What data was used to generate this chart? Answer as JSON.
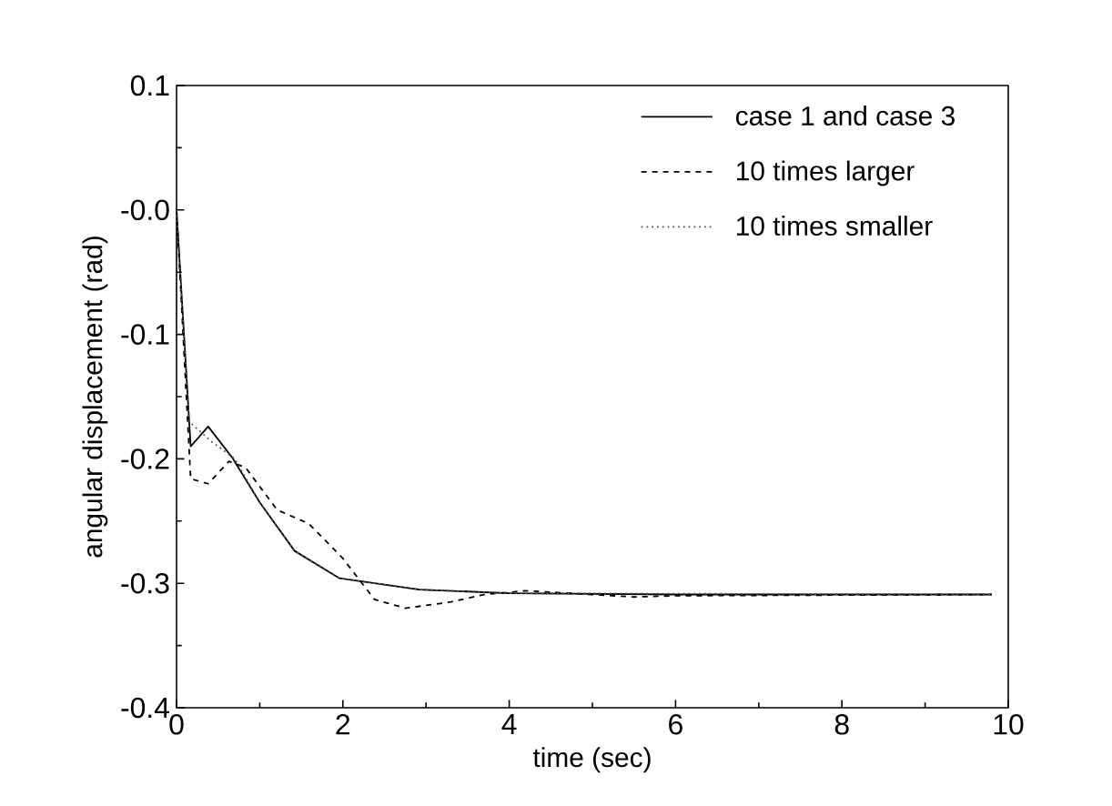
{
  "chart_data": {
    "type": "line",
    "xlabel": "time (sec)",
    "ylabel": "angular displacement (rad)",
    "xlim": [
      0,
      10
    ],
    "ylim": [
      -0.4,
      0.1
    ],
    "xticks": [
      0,
      2,
      4,
      6,
      8,
      10
    ],
    "yticks": [
      {
        "value": -0.4,
        "label": "-0.4"
      },
      {
        "value": -0.3,
        "label": "-0.3"
      },
      {
        "value": -0.2,
        "label": "-0.2"
      },
      {
        "value": -0.1,
        "label": "-0.1"
      },
      {
        "value": 0,
        "label": "-0.0"
      },
      {
        "value": 0.1,
        "label": "0.1"
      }
    ],
    "grid": false,
    "legend": "top right",
    "series": [
      {
        "name": "case 1 and case 3",
        "color": "#000000",
        "line_style": "solid",
        "x": [
          0,
          0.17,
          0.38,
          0.67,
          1.0,
          1.42,
          1.96,
          2.92,
          4.0,
          6.0,
          9.8
        ],
        "values": [
          0,
          -0.19,
          -0.174,
          -0.199,
          -0.235,
          -0.274,
          -0.296,
          -0.305,
          -0.308,
          -0.309,
          -0.309
        ]
      },
      {
        "name": "10 times larger",
        "color": "#000000",
        "line_style": "dashed",
        "x": [
          0,
          0.17,
          0.38,
          0.63,
          0.83,
          1.21,
          1.59,
          2.0,
          2.38,
          2.75,
          3.3,
          3.7,
          4.2,
          5.0,
          5.5,
          6.0,
          9.8
        ],
        "values": [
          0,
          -0.216,
          -0.22,
          -0.202,
          -0.207,
          -0.241,
          -0.252,
          -0.28,
          -0.313,
          -0.32,
          -0.315,
          -0.309,
          -0.306,
          -0.309,
          -0.311,
          -0.31,
          -0.309
        ]
      },
      {
        "name": "10 times smaller",
        "color": "#555555",
        "line_style": "dotted",
        "x": [
          0,
          0.15,
          0.4,
          0.7,
          1.0,
          1.42,
          1.96,
          2.92,
          4.0,
          9.8
        ],
        "values": [
          0,
          -0.17,
          -0.185,
          -0.2,
          -0.235,
          -0.274,
          -0.296,
          -0.305,
          -0.308,
          -0.309
        ]
      }
    ]
  }
}
